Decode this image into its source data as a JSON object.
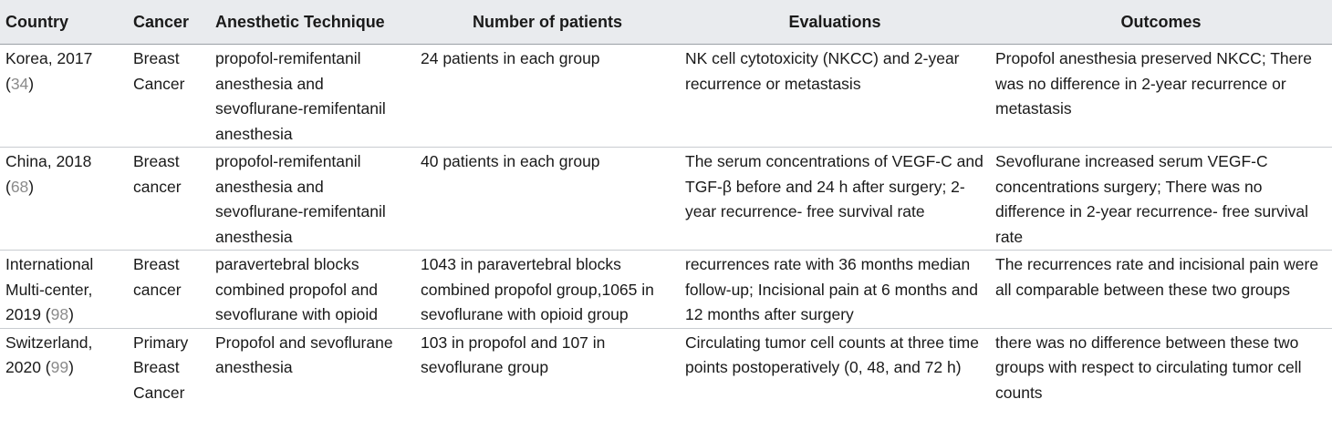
{
  "headers": {
    "country": "Country",
    "cancer": "Cancer",
    "technique": "Anesthetic Technique",
    "patients": "Number of patients",
    "evaluations": "Evaluations",
    "outcomes": "Outcomes"
  },
  "rows": [
    {
      "country_pre": "Korea, 2017 (",
      "ref": "34",
      "country_post": ")",
      "cancer": "Breast Cancer",
      "technique": "propofol-remifentanil anesthesia and sevoflurane-remifentanil anesthesia",
      "patients": "24 patients in each group",
      "evaluations": "NK cell cytotoxicity (NKCC) and 2-year recurrence or metastasis",
      "outcomes": "Propofol anesthesia preserved NKCC; There was no difference in 2-year recurrence or metastasis"
    },
    {
      "country_pre": "China, 2018 (",
      "ref": "68",
      "country_post": ")",
      "cancer": "Breast cancer",
      "technique": "propofol-remifentanil anesthesia and sevoflurane-remifentanil anesthesia",
      "patients": "40 patients in each group",
      "evaluations": "The serum concentrations of VEGF-C and TGF-β before and 24 h after surgery; 2-year recurrence- free survival rate",
      "outcomes": "Sevoflurane increased serum VEGF-C concentrations surgery; There was no difference in 2-year recurrence- free survival rate"
    },
    {
      "country_pre": "International Multi-center, 2019 (",
      "ref": "98",
      "country_post": ")",
      "cancer": "Breast cancer",
      "technique": "paravertebral blocks combined propofol and sevoflurane with opioid",
      "patients": "1043 in paravertebral blocks combined propofol group,1065 in sevoflurane with opioid group",
      "evaluations": "recurrences rate with 36 months median follow-up; Incisional pain at 6 months and 12 months after surgery",
      "outcomes": "The recurrences rate and incisional pain were all comparable between these two groups"
    },
    {
      "country_pre": "Switzerland, 2020 (",
      "ref": "99",
      "country_post": ")",
      "cancer": "Primary Breast Cancer",
      "technique": "Propofol and sevoflurane anesthesia",
      "patients": "103 in propofol and 107 in sevoflurane group",
      "evaluations": "Circulating tumor cell counts at three time points postoperatively (0, 48, and 72 h)",
      "outcomes": "there was no difference between these two groups with respect to circulating tumor cell counts"
    }
  ],
  "colors": {
    "header_bg": "#e9ebee",
    "ref_link": "#8b8b8b"
  }
}
